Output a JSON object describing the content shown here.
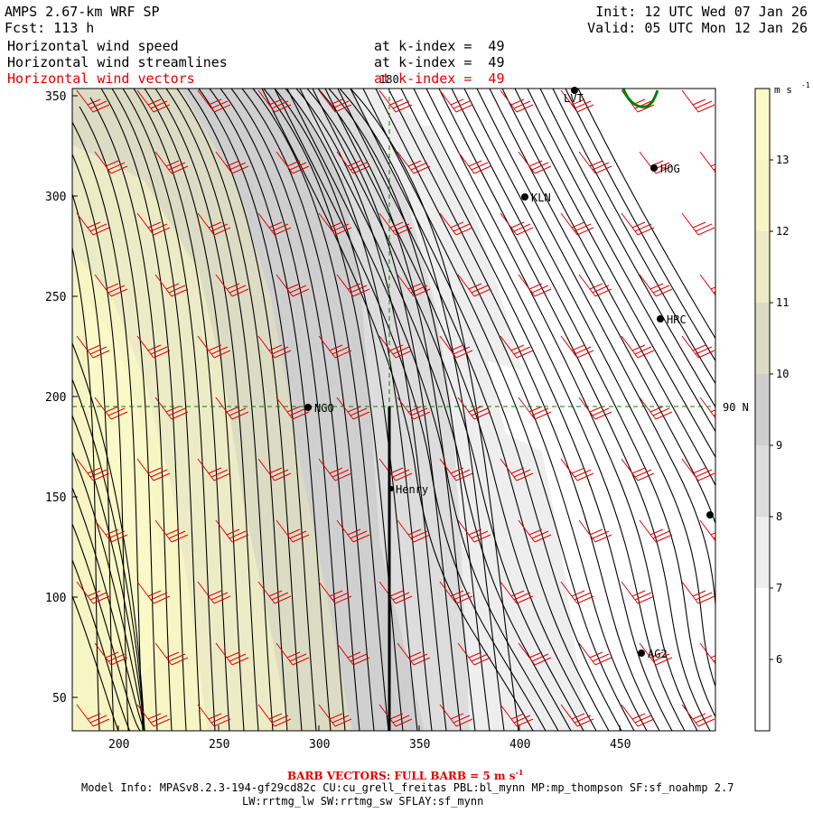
{
  "header": {
    "model_title": "AMPS 2.67-km WRF SP",
    "forecast": "Fcst: 113 h",
    "init": "Init: 12 UTC Wed 07 Jan 26",
    "valid": "Valid: 05 UTC Mon 12 Jan 26",
    "fields": [
      {
        "name": "Horizontal wind speed",
        "level": "at k-index =  49",
        "color": "#000000"
      },
      {
        "name": "Horizontal wind streamlines",
        "level": "at k-index =  49",
        "color": "#000000"
      },
      {
        "name": "Horizontal wind vectors",
        "level": "at k-index =  49",
        "color": "#e00000"
      }
    ]
  },
  "map": {
    "x_ticks": [
      "200",
      "250",
      "300",
      "350",
      "400",
      "450"
    ],
    "y_ticks": [
      "350",
      "300",
      "250",
      "200",
      "150",
      "100",
      "50"
    ],
    "grid_labels": {
      "lon": "180",
      "lat": "90 N"
    },
    "stations": [
      "LVT",
      "HOG",
      "KLN",
      "HRC",
      "NGO",
      "Henry",
      "AG2"
    ],
    "shading_colors": [
      "#ffffff",
      "#eeeeee",
      "#dddddd",
      "#cfcfcf",
      "#dcdcc4",
      "#ecebc6",
      "#f7f5c4",
      "#fbf9c8"
    ],
    "streamline_color": "#000000",
    "vector_color": "#e00000",
    "line_color": "#008000"
  },
  "colorbar": {
    "unit": "m s",
    "unit_exp": "-1",
    "labels": [
      "13",
      "12",
      "11",
      "10",
      "9",
      "8",
      "7",
      "6"
    ],
    "colors": [
      "#fbf9c8",
      "#f7f5c4",
      "#ecebc6",
      "#dcdcc4",
      "#cfcfcf",
      "#dddddd",
      "#eeeeee",
      "#ffffff",
      "#ffffff"
    ]
  },
  "footer": {
    "barb_note": "BARB VECTORS: FULL BARB = 5 m s",
    "barb_exp": "-1",
    "model_info": "Model Info: MPASv8.2.3-194-gf29cd82c CU:cu_grell_freitas PBL:bl_mynn MP:mp_thompson SF:sf_noahmp 2.7",
    "physics": "LW:rrtmg_lw SW:rrtmg_sw SFLAY:sf_mynn"
  }
}
